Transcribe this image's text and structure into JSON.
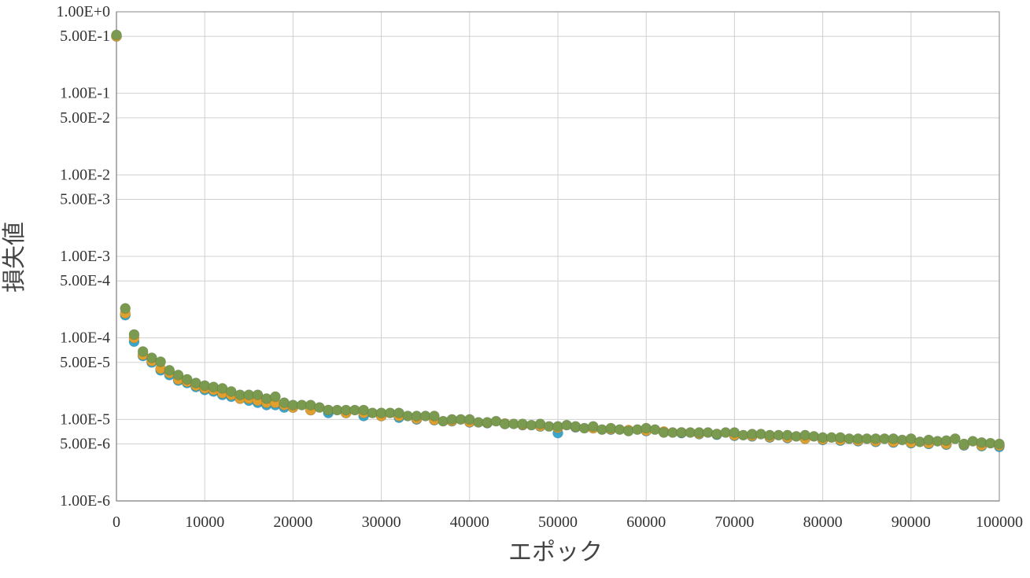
{
  "chart_data": {
    "type": "scatter",
    "title": "",
    "xlabel": "エポック",
    "ylabel": "損失値",
    "xlim": [
      0,
      100000
    ],
    "ylim": [
      1e-06,
      1
    ],
    "y_scale": "log",
    "grid": true,
    "legend": "none",
    "x_ticks": [
      0,
      10000,
      20000,
      30000,
      40000,
      50000,
      60000,
      70000,
      80000,
      90000,
      100000
    ],
    "x_tick_labels": [
      "0",
      "10000",
      "20000",
      "30000",
      "40000",
      "50000",
      "60000",
      "70000",
      "80000",
      "90000",
      "100000"
    ],
    "y_ticks": [
      1,
      0.5,
      0.1,
      0.05,
      0.01,
      0.005,
      0.001,
      0.0005,
      0.0001,
      5e-05,
      1e-05,
      5e-06,
      1e-06
    ],
    "y_tick_labels": [
      "1.00E+0",
      "5.00E-1",
      "1.00E-1",
      "5.00E-2",
      "1.00E-2",
      "5.00E-3",
      "1.00E-3",
      "5.00E-4",
      "1.00E-4",
      "5.00E-5",
      "1.00E-5",
      "5.00E-6",
      "1.00E-6"
    ],
    "series": [
      {
        "color": "#3aa6c9",
        "x": [
          0,
          1000,
          2000,
          3000,
          4000,
          5000,
          6000,
          7000,
          8000,
          9000,
          10000,
          11000,
          12000,
          13000,
          14000,
          15000,
          16000,
          17000,
          18000,
          19000,
          20000,
          22000,
          24000,
          26000,
          28000,
          30000,
          32000,
          34000,
          36000,
          38000,
          40000,
          42000,
          44000,
          46000,
          48000,
          50000,
          52000,
          54000,
          56000,
          58000,
          60000,
          62000,
          64000,
          66000,
          68000,
          70000,
          72000,
          74000,
          76000,
          78000,
          80000,
          82000,
          84000,
          86000,
          88000,
          90000,
          92000,
          94000,
          96000,
          98000,
          100000
        ],
        "y": [
          0.5,
          0.00019,
          9e-05,
          6e-05,
          5e-05,
          4e-05,
          3.5e-05,
          3e-05,
          2.8e-05,
          2.5e-05,
          2.3e-05,
          2.2e-05,
          2e-05,
          1.9e-05,
          1.8e-05,
          1.7e-05,
          1.6e-05,
          1.5e-05,
          1.5e-05,
          1.4e-05,
          1.4e-05,
          1.3e-05,
          1.2e-05,
          1.2e-05,
          1.1e-05,
          1.1e-05,
          1.05e-05,
          1e-05,
          9.8e-06,
          9.5e-06,
          9.2e-06,
          9e-06,
          8.8e-06,
          8.5e-06,
          8.2e-06,
          6.8e-06,
          8e-06,
          7.8e-06,
          7.5e-06,
          7.3e-06,
          7.2e-06,
          7e-06,
          6.8e-06,
          6.6e-06,
          6.5e-06,
          6.3e-06,
          6.2e-06,
          6e-06,
          5.9e-06,
          5.8e-06,
          5.6e-06,
          5.5e-06,
          5.4e-06,
          5.3e-06,
          5.2e-06,
          5.1e-06,
          5e-06,
          4.9e-06,
          4.8e-06,
          4.7e-06,
          4.6e-06
        ]
      },
      {
        "color": "#e0a030",
        "x": [
          0,
          1000,
          2000,
          3000,
          4000,
          5000,
          6000,
          7000,
          8000,
          9000,
          10000,
          11000,
          12000,
          13000,
          14000,
          15000,
          16000,
          17000,
          18000,
          19000,
          20000,
          22000,
          24000,
          26000,
          28000,
          30000,
          32000,
          34000,
          36000,
          38000,
          40000,
          42000,
          44000,
          46000,
          48000,
          50000,
          52000,
          54000,
          56000,
          58000,
          60000,
          62000,
          64000,
          66000,
          68000,
          70000,
          72000,
          74000,
          76000,
          78000,
          80000,
          82000,
          84000,
          86000,
          88000,
          90000,
          92000,
          94000,
          96000,
          98000,
          100000
        ],
        "y": [
          0.5,
          0.0002,
          0.0001,
          6.2e-05,
          5.2e-05,
          4.2e-05,
          3.7e-05,
          3.1e-05,
          2.9e-05,
          2.6e-05,
          2.4e-05,
          2.3e-05,
          2.1e-05,
          2e-05,
          1.8e-05,
          1.8e-05,
          1.7e-05,
          1.6e-05,
          1.6e-05,
          1.5e-05,
          1.4e-05,
          1.3e-05,
          1.3e-05,
          1.2e-05,
          1.2e-05,
          1.1e-05,
          1.1e-05,
          1.02e-05,
          9.9e-06,
          9.6e-06,
          9.3e-06,
          9.1e-06,
          8.9e-06,
          8.6e-06,
          8.3e-06,
          7.9e-06,
          8.1e-06,
          7.8e-06,
          7.6e-06,
          7.4e-06,
          7.3e-06,
          7.1e-06,
          6.9e-06,
          6.7e-06,
          6.6e-06,
          6.4e-06,
          6.3e-06,
          6.1e-06,
          6e-06,
          5.8e-06,
          5.7e-06,
          5.6e-06,
          5.5e-06,
          5.4e-06,
          5.3e-06,
          5.2e-06,
          5.1e-06,
          5e-06,
          4.9e-06,
          4.8e-06,
          4.8e-06
        ]
      },
      {
        "color": "#7a9a50",
        "x": [
          0,
          1000,
          2000,
          3000,
          4000,
          5000,
          6000,
          7000,
          8000,
          9000,
          10000,
          11000,
          12000,
          13000,
          14000,
          15000,
          16000,
          17000,
          18000,
          19000,
          20000,
          21000,
          22000,
          23000,
          24000,
          25000,
          26000,
          27000,
          28000,
          29000,
          30000,
          31000,
          32000,
          33000,
          34000,
          35000,
          36000,
          37000,
          38000,
          39000,
          40000,
          41000,
          42000,
          43000,
          44000,
          45000,
          46000,
          47000,
          48000,
          49000,
          50000,
          51000,
          52000,
          53000,
          54000,
          55000,
          56000,
          57000,
          58000,
          59000,
          60000,
          61000,
          62000,
          63000,
          64000,
          65000,
          66000,
          67000,
          68000,
          69000,
          70000,
          71000,
          72000,
          73000,
          74000,
          75000,
          76000,
          77000,
          78000,
          79000,
          80000,
          81000,
          82000,
          83000,
          84000,
          85000,
          86000,
          87000,
          88000,
          89000,
          90000,
          91000,
          92000,
          93000,
          94000,
          95000,
          96000,
          97000,
          98000,
          99000,
          100000
        ],
        "y": [
          0.52,
          0.00023,
          0.00011,
          6.8e-05,
          5.7e-05,
          5.1e-05,
          4e-05,
          3.5e-05,
          3.1e-05,
          2.8e-05,
          2.6e-05,
          2.5e-05,
          2.4e-05,
          2.2e-05,
          2e-05,
          2e-05,
          2e-05,
          1.8e-05,
          1.9e-05,
          1.6e-05,
          1.5e-05,
          1.5e-05,
          1.5e-05,
          1.4e-05,
          1.3e-05,
          1.3e-05,
          1.3e-05,
          1.3e-05,
          1.3e-05,
          1.2e-05,
          1.2e-05,
          1.2e-05,
          1.2e-05,
          1.1e-05,
          1.1e-05,
          1.1e-05,
          1.1e-05,
          9.5e-06,
          1e-05,
          1e-05,
          1e-05,
          9.2e-06,
          9.2e-06,
          9.5e-06,
          8.8e-06,
          8.8e-06,
          8.8e-06,
          8.5e-06,
          8.8e-06,
          8.2e-06,
          8.2e-06,
          8.5e-06,
          8.2e-06,
          7.8e-06,
          8.2e-06,
          7.5e-06,
          7.8e-06,
          7.5e-06,
          7.2e-06,
          7.5e-06,
          7.8e-06,
          7.5e-06,
          6.9e-06,
          6.9e-06,
          6.9e-06,
          6.9e-06,
          6.9e-06,
          6.9e-06,
          6.6e-06,
          6.9e-06,
          6.9e-06,
          6.4e-06,
          6.6e-06,
          6.6e-06,
          6.4e-06,
          6.4e-06,
          6.4e-06,
          6.2e-06,
          6.4e-06,
          6.2e-06,
          6e-06,
          6e-06,
          6e-06,
          5.8e-06,
          5.8e-06,
          5.8e-06,
          5.8e-06,
          5.8e-06,
          5.8e-06,
          5.6e-06,
          5.8e-06,
          5.3e-06,
          5.6e-06,
          5.4e-06,
          5.5e-06,
          5.8e-06,
          5e-06,
          5.4e-06,
          5.2e-06,
          5.1e-06,
          5e-06
        ]
      }
    ]
  }
}
